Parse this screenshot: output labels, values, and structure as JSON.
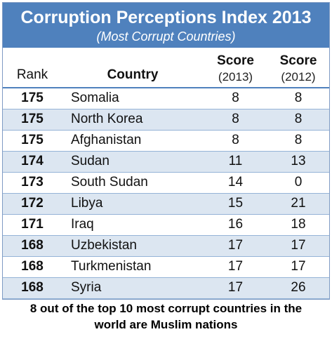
{
  "title": "Corruption Perceptions Index 2013",
  "subtitle": "(Most Corrupt Countries)",
  "headers": {
    "rank": "Rank",
    "country": "Country",
    "score_label": "Score",
    "year_2013": "(2013)",
    "year_2012": "(2012)"
  },
  "rows": [
    {
      "rank": "175",
      "country": "Somalia",
      "score_2013": "8",
      "score_2012": "8"
    },
    {
      "rank": "175",
      "country": "North Korea",
      "score_2013": "8",
      "score_2012": "8"
    },
    {
      "rank": "175",
      "country": "Afghanistan",
      "score_2013": "8",
      "score_2012": "8"
    },
    {
      "rank": "174",
      "country": "Sudan",
      "score_2013": "11",
      "score_2012": "13"
    },
    {
      "rank": "173",
      "country": "South Sudan",
      "score_2013": "14",
      "score_2012": "0"
    },
    {
      "rank": "172",
      "country": "Libya",
      "score_2013": "15",
      "score_2012": "21"
    },
    {
      "rank": "171",
      "country": "Iraq",
      "score_2013": "16",
      "score_2012": "18"
    },
    {
      "rank": "168",
      "country": "Uzbekistan",
      "score_2013": "17",
      "score_2012": "17"
    },
    {
      "rank": "168",
      "country": "Turkmenistan",
      "score_2013": "17",
      "score_2012": "17"
    },
    {
      "rank": "168",
      "country": "Syria",
      "score_2013": "17",
      "score_2012": "26"
    }
  ],
  "footer": {
    "line1": "8 out of the top 10 most corrupt countries in the",
    "line2": "world are Muslim nations"
  },
  "colors": {
    "banner": "#4f81bd",
    "band": "#dce6f1",
    "rule": "#95b3d7"
  }
}
